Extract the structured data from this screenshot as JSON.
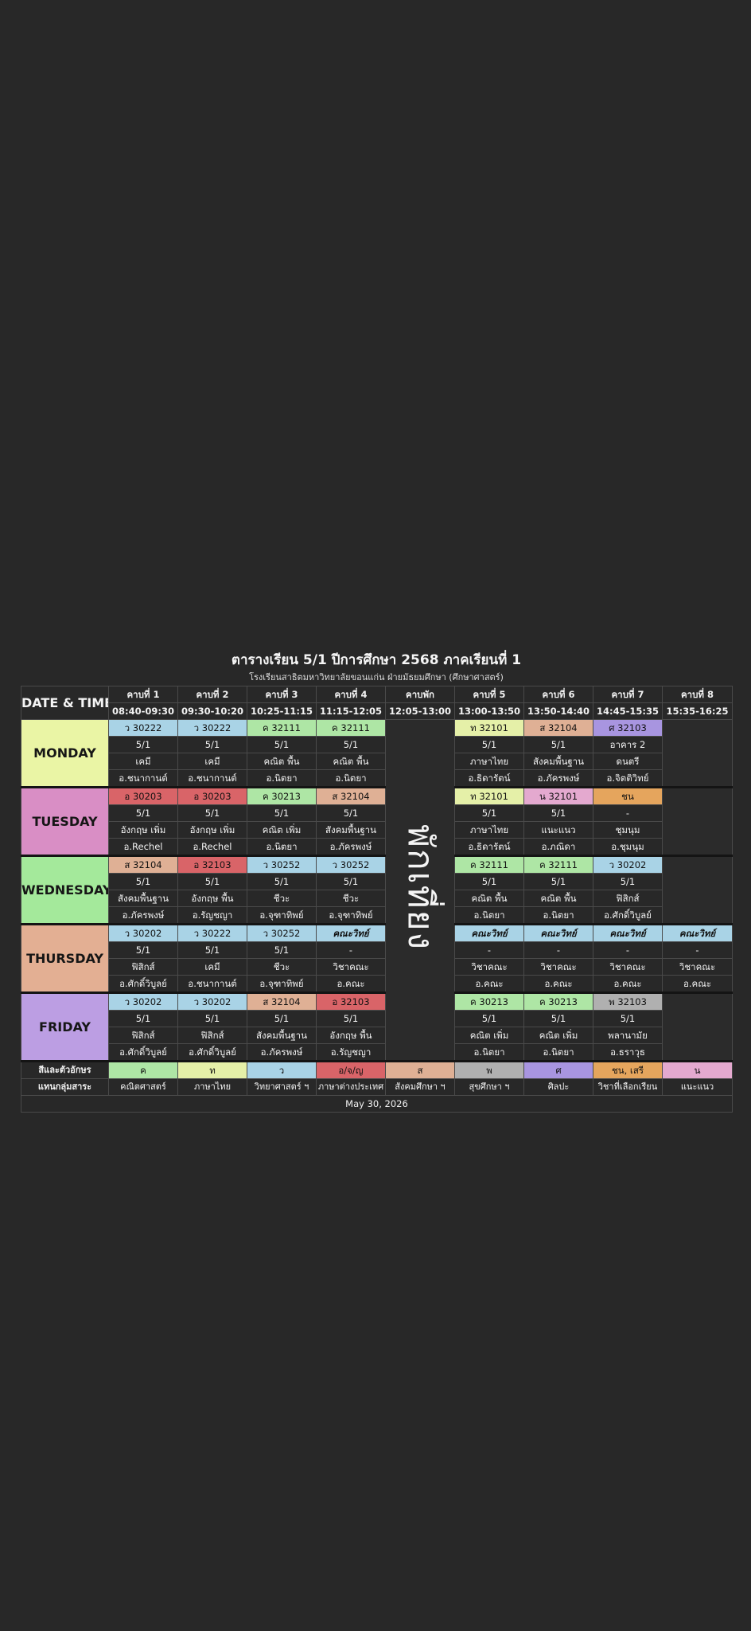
{
  "header": {
    "title": "ตารางเรียน 5/1 ปีการศึกษา 2568 ภาคเรียนที่ 1",
    "subtitle": "โรงเรียนสาธิตมหาวิทยาลัยขอนแก่น ฝ่ายมัธยมศึกษา (ศึกษาศาสตร์)"
  },
  "corner_label": "DATE & TIME",
  "periods": [
    {
      "name": "คาบที่ 1",
      "time": "08:40-09:30"
    },
    {
      "name": "คาบที่ 2",
      "time": "09:30-10:20"
    },
    {
      "name": "คาบที่ 3",
      "time": "10:25-11:15"
    },
    {
      "name": "คาบที่ 4",
      "time": "11:15-12:05"
    },
    {
      "name": "คาบพัก",
      "time": "12:05-13:00"
    },
    {
      "name": "คาบที่ 5",
      "time": "13:00-13:50"
    },
    {
      "name": "คาบที่ 6",
      "time": "13:50-14:40"
    },
    {
      "name": "คาบที่ 7",
      "time": "14:45-15:35"
    },
    {
      "name": "คาบที่ 8",
      "time": "15:35-16:25"
    }
  ],
  "lunch_label": "พักเที่ยง",
  "days": [
    {
      "name": "MONDAY",
      "color": "#eaf5a5",
      "slots": [
        {
          "code": "ว 30222",
          "color": "#a9d3e6",
          "l1": "5/1",
          "l2": "เคมี",
          "l3": "อ.ชนากานต์"
        },
        {
          "code": "ว 30222",
          "color": "#a9d3e6",
          "l1": "5/1",
          "l2": "เคมี",
          "l3": "อ.ชนากานต์"
        },
        {
          "code": "ค 32111",
          "color": "#aee6a5",
          "l1": "5/1",
          "l2": "คณิต พื้น",
          "l3": "อ.นิตยา"
        },
        {
          "code": "ค 32111",
          "color": "#aee6a5",
          "l1": "5/1",
          "l2": "คณิต พื้น",
          "l3": "อ.นิตยา"
        },
        {
          "code": "ท 32101",
          "color": "#e5f0a8",
          "l1": "5/1",
          "l2": "ภาษาไทย",
          "l3": "อ.ธิดารัตน์"
        },
        {
          "code": "ส 32104",
          "color": "#dfb095",
          "l1": "5/1",
          "l2": "สังคมพื้นฐาน",
          "l3": "อ.ภัครพงษ์"
        },
        {
          "code": "ศ 32103",
          "color": "#a895e0",
          "l1": "อาคาร 2",
          "l2": "ดนตรี",
          "l3": "อ.จิตติวิทย์"
        },
        null
      ]
    },
    {
      "name": "TUESDAY",
      "color": "#d98ec5",
      "slots": [
        {
          "code": "อ 30203",
          "color": "#d96468",
          "l1": "5/1",
          "l2": "อังกฤษ เพิ่ม",
          "l3": "อ.Rechel"
        },
        {
          "code": "อ 30203",
          "color": "#d96468",
          "l1": "5/1",
          "l2": "อังกฤษ เพิ่ม",
          "l3": "อ.Rechel"
        },
        {
          "code": "ค 30213",
          "color": "#aee6a5",
          "l1": "5/1",
          "l2": "คณิต เพิ่ม",
          "l3": "อ.นิตยา"
        },
        {
          "code": "ส 32104",
          "color": "#dfb095",
          "l1": "5/1",
          "l2": "สังคมพื้นฐาน",
          "l3": "อ.ภัครพงษ์"
        },
        {
          "code": "ท 32101",
          "color": "#e5f0a8",
          "l1": "5/1",
          "l2": "ภาษาไทย",
          "l3": "อ.ธิดารัตน์"
        },
        {
          "code": "น 32101",
          "color": "#e4a9cf",
          "l1": "5/1",
          "l2": "แนะแนว",
          "l3": "อ.ภณิดา"
        },
        {
          "code": "ชน",
          "color": "#e5a55d",
          "l1": "-",
          "l2": "ชุมนุม",
          "l3": "อ.ชุมนุม"
        },
        null
      ]
    },
    {
      "name": "WEDNESDAY",
      "color": "#a4e99b",
      "slots": [
        {
          "code": "ส 32104",
          "color": "#dfb095",
          "l1": "5/1",
          "l2": "สังคมพื้นฐาน",
          "l3": "อ.ภัครพงษ์"
        },
        {
          "code": "อ 32103",
          "color": "#d96468",
          "l1": "5/1",
          "l2": "อังกฤษ พื้น",
          "l3": "อ.รัญชญา"
        },
        {
          "code": "ว 30252",
          "color": "#a9d3e6",
          "l1": "5/1",
          "l2": "ชีวะ",
          "l3": "อ.จุฑาทิพย์"
        },
        {
          "code": "ว 30252",
          "color": "#a9d3e6",
          "l1": "5/1",
          "l2": "ชีวะ",
          "l3": "อ.จุฑาทิพย์"
        },
        {
          "code": "ค 32111",
          "color": "#aee6a5",
          "l1": "5/1",
          "l2": "คณิต พื้น",
          "l3": "อ.นิตยา"
        },
        {
          "code": "ค 32111",
          "color": "#aee6a5",
          "l1": "5/1",
          "l2": "คณิต พื้น",
          "l3": "อ.นิตยา"
        },
        {
          "code": "ว 30202",
          "color": "#a9d3e6",
          "l1": "5/1",
          "l2": "ฟิสิกส์",
          "l3": "อ.ศักดิ์วิบูลย์"
        },
        null
      ]
    },
    {
      "name": "THURSDAY",
      "color": "#e3af93",
      "slots": [
        {
          "code": "ว 30202",
          "color": "#a9d3e6",
          "l1": "5/1",
          "l2": "ฟิสิกส์",
          "l3": "อ.ศักดิ์วิบูลย์"
        },
        {
          "code": "ว 30222",
          "color": "#a9d3e6",
          "l1": "5/1",
          "l2": "เคมี",
          "l3": "อ.ชนากานต์"
        },
        {
          "code": "ว 30252",
          "color": "#a9d3e6",
          "l1": "5/1",
          "l2": "ชีวะ",
          "l3": "อ.จุฑาทิพย์"
        },
        {
          "code": "คณะวิทย์",
          "color": "#a9d3e6",
          "italic": true,
          "l1": "-",
          "l2": "วิชาคณะ",
          "l3": "อ.คณะ"
        },
        {
          "code": "คณะวิทย์",
          "color": "#a9d3e6",
          "italic": true,
          "l1": "-",
          "l2": "วิชาคณะ",
          "l3": "อ.คณะ"
        },
        {
          "code": "คณะวิทย์",
          "color": "#a9d3e6",
          "italic": true,
          "l1": "-",
          "l2": "วิชาคณะ",
          "l3": "อ.คณะ"
        },
        {
          "code": "คณะวิทย์",
          "color": "#a9d3e6",
          "italic": true,
          "l1": "-",
          "l2": "วิชาคณะ",
          "l3": "อ.คณะ"
        },
        {
          "code": "คณะวิทย์",
          "color": "#a9d3e6",
          "italic": true,
          "l1": "-",
          "l2": "วิชาคณะ",
          "l3": "อ.คณะ"
        }
      ]
    },
    {
      "name": "FRIDAY",
      "color": "#bc9ee3",
      "slots": [
        {
          "code": "ว 30202",
          "color": "#a9d3e6",
          "l1": "5/1",
          "l2": "ฟิสิกส์",
          "l3": "อ.ศักดิ์วิบูลย์"
        },
        {
          "code": "ว 30202",
          "color": "#a9d3e6",
          "l1": "5/1",
          "l2": "ฟิสิกส์",
          "l3": "อ.ศักดิ์วิบูลย์"
        },
        {
          "code": "ส 32104",
          "color": "#dfb095",
          "l1": "5/1",
          "l2": "สังคมพื้นฐาน",
          "l3": "อ.ภัครพงษ์"
        },
        {
          "code": "อ 32103",
          "color": "#d96468",
          "l1": "5/1",
          "l2": "อังกฤษ พื้น",
          "l3": "อ.รัญชญา"
        },
        {
          "code": "ค 30213",
          "color": "#aee6a5",
          "l1": "5/1",
          "l2": "คณิต เพิ่ม",
          "l3": "อ.นิตยา"
        },
        {
          "code": "ค 30213",
          "color": "#aee6a5",
          "l1": "5/1",
          "l2": "คณิต เพิ่ม",
          "l3": "อ.นิตยา"
        },
        {
          "code": "พ 32103",
          "color": "#b0b0b0",
          "l1": "5/1",
          "l2": "พลานามัย",
          "l3": "อ.ธราวุธ"
        },
        null
      ]
    }
  ],
  "legend": {
    "header1": "สีและตัวอักษร",
    "header2": "แทนกลุ่มสาระ",
    "items": [
      {
        "code": "ค",
        "color": "#aee6a5",
        "name": "คณิตศาสตร์"
      },
      {
        "code": "ท",
        "color": "#e5f0a8",
        "name": "ภาษาไทย"
      },
      {
        "code": "ว",
        "color": "#a9d3e6",
        "name": "วิทยาศาสตร์ ฯ"
      },
      {
        "code": "อ/จ/ญ",
        "color": "#d96468",
        "name": "ภาษาต่างประเทศ"
      },
      {
        "code": "ส",
        "color": "#dfb095",
        "name": "สังคมศึกษา ฯ"
      },
      {
        "code": "พ",
        "color": "#b0b0b0",
        "name": "สุขศึกษา ฯ"
      },
      {
        "code": "ศ",
        "color": "#a895e0",
        "name": "ศิลปะ"
      },
      {
        "code": "ชน, เสรี",
        "color": "#e5a55d",
        "name": "วิชาที่เลือกเรียน"
      },
      {
        "code": "น",
        "color": "#e4a9cf",
        "name": "แนะแนว"
      }
    ]
  },
  "footer_date": "May 30, 2026"
}
